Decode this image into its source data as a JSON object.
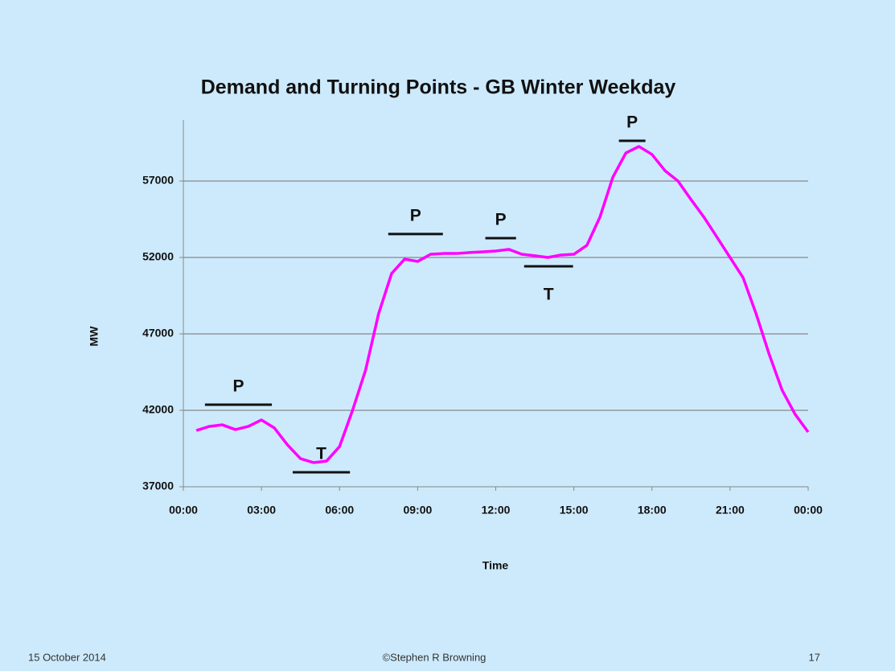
{
  "chart_data": {
    "type": "line",
    "title": "Demand and Turning Points - GB Winter Weekday",
    "ylabel": "MW",
    "xlabel": "Time",
    "x": [
      0.5,
      1,
      1.5,
      2,
      2.5,
      3,
      3.5,
      4,
      4.5,
      5,
      5.5,
      6,
      6.5,
      7,
      7.5,
      8,
      8.5,
      9,
      9.5,
      10,
      10.5,
      11,
      11.5,
      12,
      12.5,
      13,
      13.5,
      14,
      14.5,
      15,
      15.5,
      16,
      16.5,
      17,
      17.5,
      18,
      18.5,
      19,
      19.5,
      20,
      20.5,
      21,
      21.5,
      22,
      22.5,
      23,
      23.5,
      24
    ],
    "series": [
      {
        "name": "Demand",
        "color": "#ff00ff",
        "values": [
          40680,
          40950,
          41050,
          40740,
          40950,
          41370,
          40840,
          39740,
          38840,
          38580,
          38680,
          39630,
          42000,
          44630,
          48320,
          50950,
          51890,
          51740,
          52210,
          52260,
          52260,
          52320,
          52370,
          52420,
          52530,
          52210,
          52110,
          52000,
          52160,
          52210,
          52790,
          54630,
          57260,
          58840,
          59260,
          58740,
          57680,
          57000,
          55790,
          54630,
          53320,
          52000,
          50680,
          48320,
          45680,
          43320,
          41740,
          40580
        ]
      }
    ],
    "xlim": [
      0,
      24
    ],
    "xticks": [
      {
        "value": 0,
        "label": "00:00"
      },
      {
        "value": 3,
        "label": "03:00"
      },
      {
        "value": 6,
        "label": "06:00"
      },
      {
        "value": 9,
        "label": "09:00"
      },
      {
        "value": 12,
        "label": "12:00"
      },
      {
        "value": 15,
        "label": "15:00"
      },
      {
        "value": 18,
        "label": "18:00"
      },
      {
        "value": 21,
        "label": "21:00"
      },
      {
        "value": 24,
        "label": "00:00"
      }
    ],
    "ylim": [
      37000,
      61000
    ],
    "yticks": [
      37000,
      42000,
      47000,
      52000,
      57000
    ],
    "grid": true,
    "annotations": [
      {
        "text": "P",
        "x0": 0.83,
        "x1": 3.4,
        "y": 42370,
        "position": "above"
      },
      {
        "text": "T",
        "x0": 4.2,
        "x1": 6.4,
        "y": 37950,
        "position": "above"
      },
      {
        "text": "P",
        "x0": 7.87,
        "x1": 9.97,
        "y": 53530,
        "position": "above"
      },
      {
        "text": "P",
        "x0": 11.6,
        "x1": 12.78,
        "y": 53260,
        "position": "above"
      },
      {
        "text": "T",
        "x0": 13.09,
        "x1": 14.97,
        "y": 51420,
        "position": "below"
      },
      {
        "text": "P",
        "x0": 16.73,
        "x1": 17.75,
        "y": 59630,
        "position": "above"
      }
    ]
  },
  "footer": {
    "date": "15 October 2014",
    "credit": "©Stephen R Browning",
    "page": "17"
  }
}
